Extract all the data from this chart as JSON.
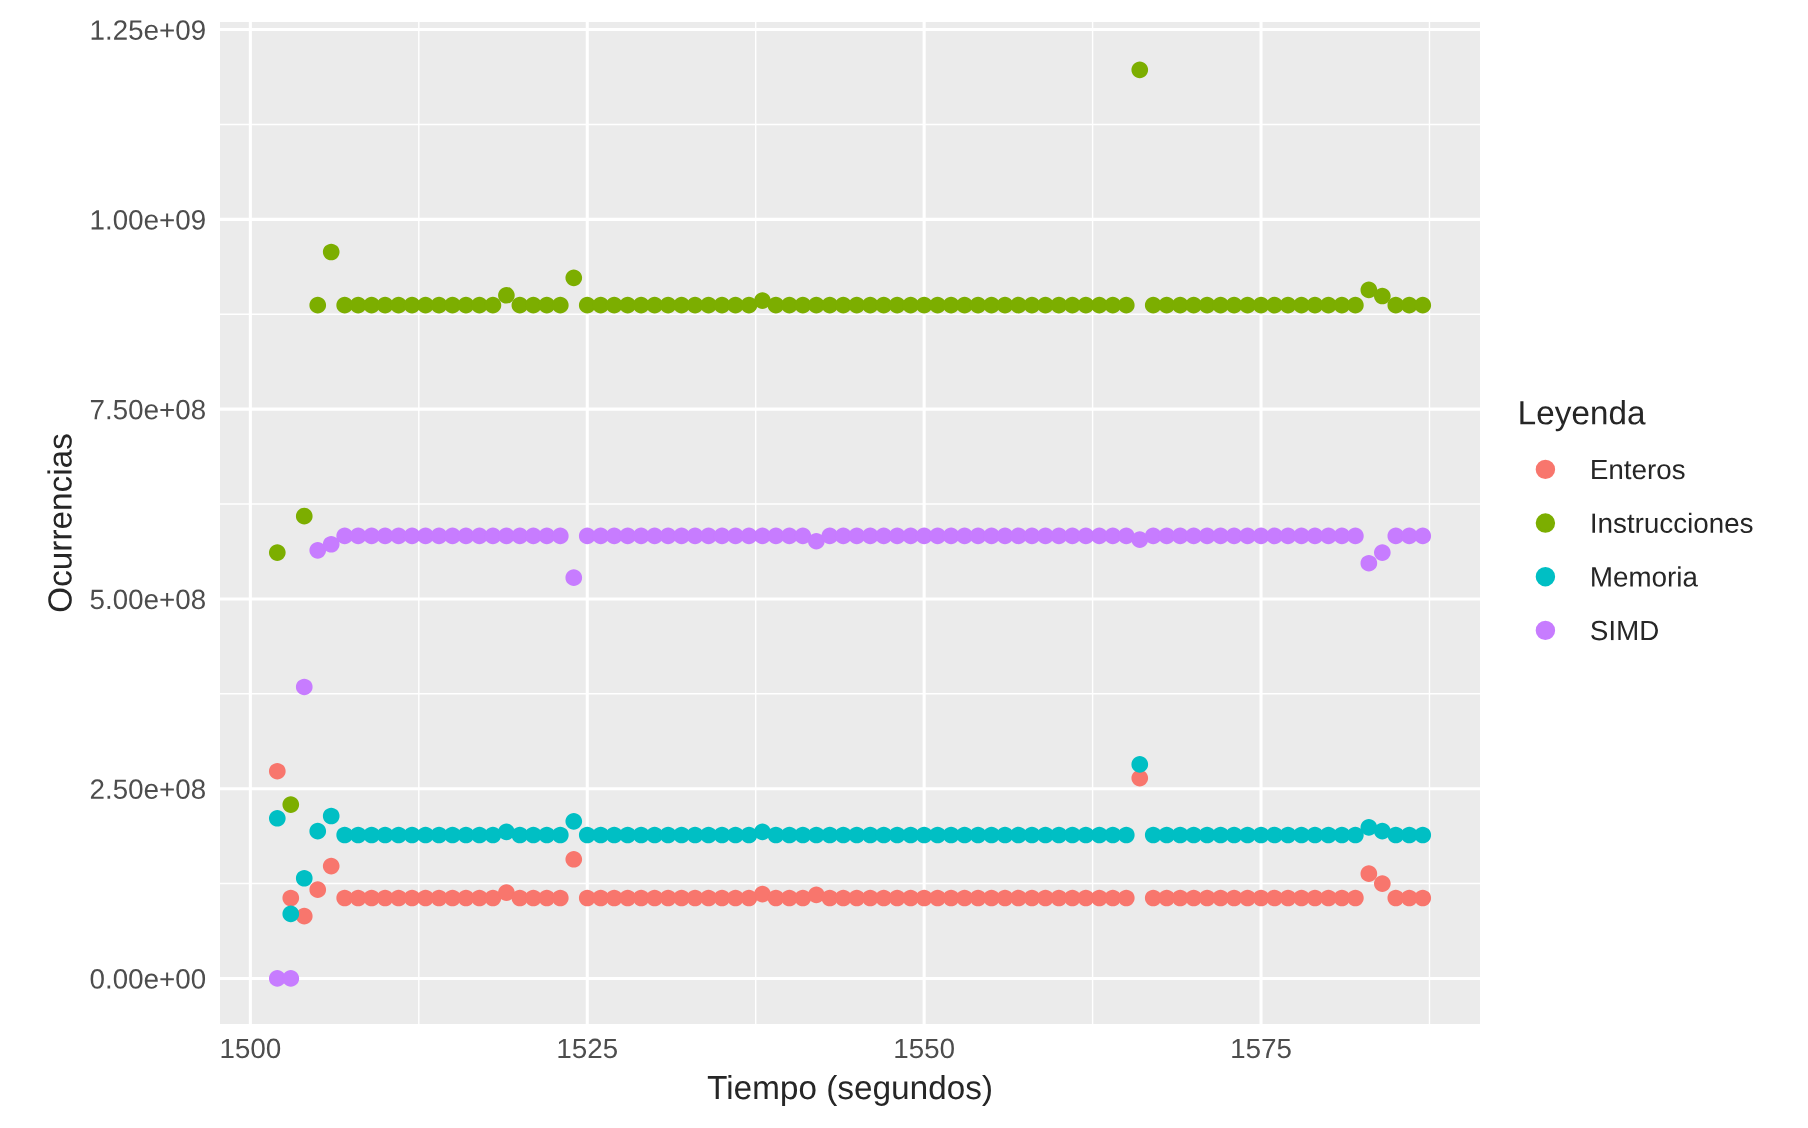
{
  "chart_data": {
    "type": "scatter",
    "xlabel": "Tiempo (segundos)",
    "ylabel": "Ocurrencias",
    "legend_title": "Leyenda",
    "x": [
      1502,
      1503,
      1504,
      1505,
      1506,
      1507,
      1508,
      1509,
      1510,
      1511,
      1512,
      1513,
      1514,
      1515,
      1516,
      1517,
      1518,
      1519,
      1520,
      1521,
      1522,
      1523,
      1524,
      1525,
      1526,
      1527,
      1528,
      1529,
      1530,
      1531,
      1532,
      1533,
      1534,
      1535,
      1536,
      1537,
      1538,
      1539,
      1540,
      1541,
      1542,
      1543,
      1544,
      1545,
      1546,
      1547,
      1548,
      1549,
      1550,
      1551,
      1552,
      1553,
      1554,
      1555,
      1556,
      1557,
      1558,
      1559,
      1560,
      1561,
      1562,
      1563,
      1564,
      1565,
      1566,
      1567,
      1568,
      1569,
      1570,
      1571,
      1572,
      1573,
      1574,
      1575,
      1576,
      1577,
      1578,
      1579,
      1580,
      1581,
      1582,
      1583,
      1584,
      1585,
      1586,
      1587
    ],
    "series": [
      {
        "name": "Enteros",
        "color": "#f8766d",
        "values": [
          273000000.0,
          106000000.0,
          82000000.0,
          117000000.0,
          148000000.0,
          106000000.0,
          106000000.0,
          106000000.0,
          106000000.0,
          106000000.0,
          106000000.0,
          106000000.0,
          106000000.0,
          106000000.0,
          106000000.0,
          106000000.0,
          106000000.0,
          113000000.0,
          106000000.0,
          106000000.0,
          106000000.0,
          106000000.0,
          157000000.0,
          106000000.0,
          106000000.0,
          106000000.0,
          106000000.0,
          106000000.0,
          106000000.0,
          106000000.0,
          106000000.0,
          106000000.0,
          106000000.0,
          106000000.0,
          106000000.0,
          106000000.0,
          111000000.0,
          106000000.0,
          106000000.0,
          106000000.0,
          110000000.0,
          106000000.0,
          106000000.0,
          106000000.0,
          106000000.0,
          106000000.0,
          106000000.0,
          106000000.0,
          106000000.0,
          106000000.0,
          106000000.0,
          106000000.0,
          106000000.0,
          106000000.0,
          106000000.0,
          106000000.0,
          106000000.0,
          106000000.0,
          106000000.0,
          106000000.0,
          106000000.0,
          106000000.0,
          106000000.0,
          106000000.0,
          264000000.0,
          106000000.0,
          106000000.0,
          106000000.0,
          106000000.0,
          106000000.0,
          106000000.0,
          106000000.0,
          106000000.0,
          106000000.0,
          106000000.0,
          106000000.0,
          106000000.0,
          106000000.0,
          106000000.0,
          106000000.0,
          106000000.0,
          138000000.0,
          125000000.0,
          106000000.0,
          106000000.0,
          106000000.0
        ]
      },
      {
        "name": "Instrucciones",
        "color": "#7cae00",
        "values": [
          561000000.0,
          229000000.0,
          609000000.0,
          887000000.0,
          957000000.0,
          887000000.0,
          887000000.0,
          887000000.0,
          887000000.0,
          887000000.0,
          887000000.0,
          887000000.0,
          887000000.0,
          887000000.0,
          887000000.0,
          887000000.0,
          887000000.0,
          900000000.0,
          887000000.0,
          887000000.0,
          887000000.0,
          887000000.0,
          923000000.0,
          887000000.0,
          887000000.0,
          887000000.0,
          887000000.0,
          887000000.0,
          887000000.0,
          887000000.0,
          887000000.0,
          887000000.0,
          887000000.0,
          887000000.0,
          887000000.0,
          887000000.0,
          893000000.0,
          887000000.0,
          887000000.0,
          887000000.0,
          887000000.0,
          887000000.0,
          887000000.0,
          887000000.0,
          887000000.0,
          887000000.0,
          887000000.0,
          887000000.0,
          887000000.0,
          887000000.0,
          887000000.0,
          887000000.0,
          887000000.0,
          887000000.0,
          887000000.0,
          887000000.0,
          887000000.0,
          887000000.0,
          887000000.0,
          887000000.0,
          887000000.0,
          887000000.0,
          887000000.0,
          887000000.0,
          1197000000.0,
          887000000.0,
          887000000.0,
          887000000.0,
          887000000.0,
          887000000.0,
          887000000.0,
          887000000.0,
          887000000.0,
          887000000.0,
          887000000.0,
          887000000.0,
          887000000.0,
          887000000.0,
          887000000.0,
          887000000.0,
          887000000.0,
          907000000.0,
          899000000.0,
          887000000.0,
          887000000.0,
          887000000.0
        ]
      },
      {
        "name": "Memoria",
        "color": "#00bfc4",
        "values": [
          211000000.0,
          85000000.0,
          132000000.0,
          194000000.0,
          214000000.0,
          189000000.0,
          189000000.0,
          189000000.0,
          189000000.0,
          189000000.0,
          189000000.0,
          189000000.0,
          189000000.0,
          189000000.0,
          189000000.0,
          189000000.0,
          189000000.0,
          193000000.0,
          189000000.0,
          189000000.0,
          189000000.0,
          189000000.0,
          207000000.0,
          189000000.0,
          189000000.0,
          189000000.0,
          189000000.0,
          189000000.0,
          189000000.0,
          189000000.0,
          189000000.0,
          189000000.0,
          189000000.0,
          189000000.0,
          189000000.0,
          189000000.0,
          193000000.0,
          189000000.0,
          189000000.0,
          189000000.0,
          189000000.0,
          189000000.0,
          189000000.0,
          189000000.0,
          189000000.0,
          189000000.0,
          189000000.0,
          189000000.0,
          189000000.0,
          189000000.0,
          189000000.0,
          189000000.0,
          189000000.0,
          189000000.0,
          189000000.0,
          189000000.0,
          189000000.0,
          189000000.0,
          189000000.0,
          189000000.0,
          189000000.0,
          189000000.0,
          189000000.0,
          189000000.0,
          282000000.0,
          189000000.0,
          189000000.0,
          189000000.0,
          189000000.0,
          189000000.0,
          189000000.0,
          189000000.0,
          189000000.0,
          189000000.0,
          189000000.0,
          189000000.0,
          189000000.0,
          189000000.0,
          189000000.0,
          189000000.0,
          189000000.0,
          199000000.0,
          194000000.0,
          189000000.0,
          189000000.0,
          189000000.0
        ]
      },
      {
        "name": "SIMD",
        "color": "#c77cff",
        "values": [
          0,
          0,
          384000000.0,
          564000000.0,
          572000000.0,
          583000000.0,
          583000000.0,
          583000000.0,
          583000000.0,
          583000000.0,
          583000000.0,
          583000000.0,
          583000000.0,
          583000000.0,
          583000000.0,
          583000000.0,
          583000000.0,
          583000000.0,
          583000000.0,
          583000000.0,
          583000000.0,
          583000000.0,
          528000000.0,
          583000000.0,
          583000000.0,
          583000000.0,
          583000000.0,
          583000000.0,
          583000000.0,
          583000000.0,
          583000000.0,
          583000000.0,
          583000000.0,
          583000000.0,
          583000000.0,
          583000000.0,
          583000000.0,
          583000000.0,
          583000000.0,
          583000000.0,
          576000000.0,
          583000000.0,
          583000000.0,
          583000000.0,
          583000000.0,
          583000000.0,
          583000000.0,
          583000000.0,
          583000000.0,
          583000000.0,
          583000000.0,
          583000000.0,
          583000000.0,
          583000000.0,
          583000000.0,
          583000000.0,
          583000000.0,
          583000000.0,
          583000000.0,
          583000000.0,
          583000000.0,
          583000000.0,
          583000000.0,
          583000000.0,
          578000000.0,
          583000000.0,
          583000000.0,
          583000000.0,
          583000000.0,
          583000000.0,
          583000000.0,
          583000000.0,
          583000000.0,
          583000000.0,
          583000000.0,
          583000000.0,
          583000000.0,
          583000000.0,
          583000000.0,
          583000000.0,
          583000000.0,
          547000000.0,
          561000000.0,
          583000000.0,
          583000000.0,
          583000000.0
        ]
      }
    ],
    "xlim": [
      1497.75,
      1591.25
    ],
    "xticks": [
      1500,
      1525,
      1550,
      1575
    ],
    "ylim": [
      -60000000.0,
      1260000000.0
    ],
    "yticks": [
      {
        "value": 0,
        "label": "0.00e+00"
      },
      {
        "value": 250000000.0,
        "label": "2.50e+08"
      },
      {
        "value": 500000000.0,
        "label": "5.00e+08"
      },
      {
        "value": 750000000.0,
        "label": "7.50e+08"
      },
      {
        "value": 1000000000.0,
        "label": "1.00e+09"
      },
      {
        "value": 1250000000.0,
        "label": "1.25e+09"
      }
    ],
    "grid": true,
    "legend": "right",
    "marker": "circle"
  }
}
